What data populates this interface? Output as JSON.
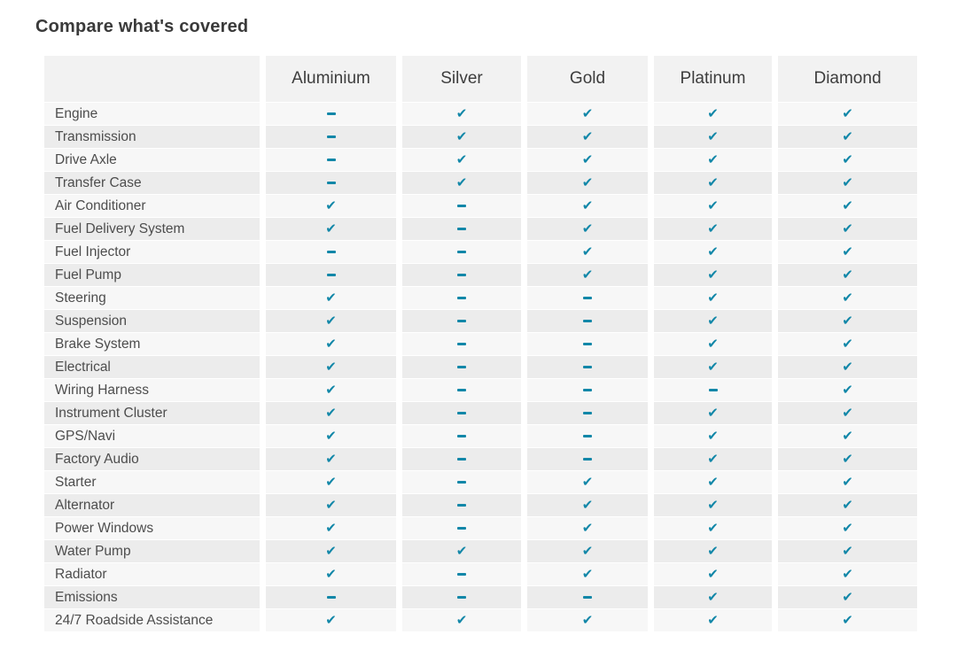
{
  "page": {
    "title": "Compare what's covered"
  },
  "icons": {
    "check": "✔",
    "dash": "-"
  },
  "colors": {
    "accent": "#1287a8",
    "header_bg": "#f2f2f2",
    "stripe_light": "#f7f7f7",
    "stripe_dark": "#ececec"
  },
  "table": {
    "columns": [
      "Aluminium",
      "Silver",
      "Gold",
      "Platinum",
      "Diamond"
    ],
    "rows": [
      {
        "label": "Engine",
        "coverage": [
          false,
          true,
          true,
          true,
          true
        ]
      },
      {
        "label": "Transmission",
        "coverage": [
          false,
          true,
          true,
          true,
          true
        ]
      },
      {
        "label": "Drive Axle",
        "coverage": [
          false,
          true,
          true,
          true,
          true
        ]
      },
      {
        "label": "Transfer Case",
        "coverage": [
          false,
          true,
          true,
          true,
          true
        ]
      },
      {
        "label": "Air Conditioner",
        "coverage": [
          true,
          false,
          true,
          true,
          true
        ]
      },
      {
        "label": "Fuel Delivery System",
        "coverage": [
          true,
          false,
          true,
          true,
          true
        ]
      },
      {
        "label": "Fuel Injector",
        "coverage": [
          false,
          false,
          true,
          true,
          true
        ]
      },
      {
        "label": "Fuel Pump",
        "coverage": [
          false,
          false,
          true,
          true,
          true
        ]
      },
      {
        "label": "Steering",
        "coverage": [
          true,
          false,
          false,
          true,
          true
        ]
      },
      {
        "label": "Suspension",
        "coverage": [
          true,
          false,
          false,
          true,
          true
        ]
      },
      {
        "label": "Brake System",
        "coverage": [
          true,
          false,
          false,
          true,
          true
        ]
      },
      {
        "label": "Electrical",
        "coverage": [
          true,
          false,
          false,
          true,
          true
        ]
      },
      {
        "label": "Wiring Harness",
        "coverage": [
          true,
          false,
          false,
          false,
          true
        ]
      },
      {
        "label": "Instrument Cluster",
        "coverage": [
          true,
          false,
          false,
          true,
          true
        ]
      },
      {
        "label": "GPS/Navi",
        "coverage": [
          true,
          false,
          false,
          true,
          true
        ]
      },
      {
        "label": "Factory Audio",
        "coverage": [
          true,
          false,
          false,
          true,
          true
        ]
      },
      {
        "label": "Starter",
        "coverage": [
          true,
          false,
          true,
          true,
          true
        ]
      },
      {
        "label": "Alternator",
        "coverage": [
          true,
          false,
          true,
          true,
          true
        ]
      },
      {
        "label": "Power Windows",
        "coverage": [
          true,
          false,
          true,
          true,
          true
        ]
      },
      {
        "label": "Water Pump",
        "coverage": [
          true,
          true,
          true,
          true,
          true
        ]
      },
      {
        "label": "Radiator",
        "coverage": [
          true,
          false,
          true,
          true,
          true
        ]
      },
      {
        "label": "Emissions",
        "coverage": [
          false,
          false,
          false,
          true,
          true
        ]
      },
      {
        "label": "24/7 Roadside Assistance",
        "coverage": [
          true,
          true,
          true,
          true,
          true
        ]
      }
    ]
  }
}
